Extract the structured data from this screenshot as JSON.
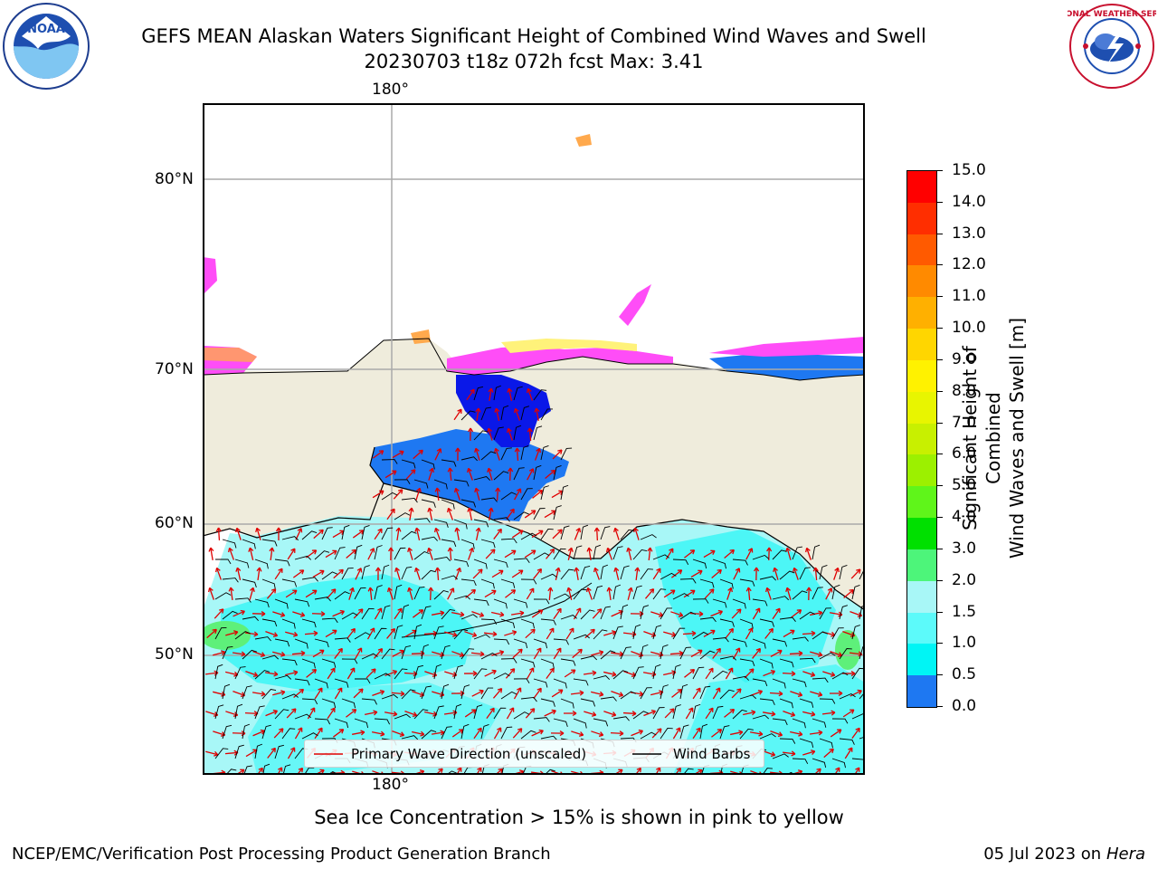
{
  "header": {
    "title_line1": "GEFS MEAN Alaskan Waters Significant Height of Combined Wind Waves and Swell",
    "title_line2": "20230703 t18z 072h fcst   Max: 3.41"
  },
  "logos": {
    "left_text": "NOAA",
    "right_text": "NATIONAL WEATHER SERVICE"
  },
  "map": {
    "lon_labels": [
      "180°",
      "180°"
    ],
    "lat_labels": [
      "80°N",
      "70°N",
      "60°N",
      "50°N"
    ],
    "colors": {
      "land": "#efecdc",
      "ocean_light": "#a8f7f7",
      "ocean_cyan": "#3cf6f6",
      "ocean_blue": "#1e78f2",
      "ocean_deep": "#0a18e8",
      "ice_pink": "#ff4df7",
      "ice_orange": "#ffa94d",
      "ice_yellow": "#fff27a",
      "green": "#5ef07a",
      "grid": "#aaaaaa"
    }
  },
  "legend": {
    "wave_label": "Primary Wave Direction (unscaled)",
    "barb_label": "Wind Barbs"
  },
  "colorbar": {
    "label_line1": "Significant Height of Combined",
    "label_line2": "Wind Waves and Swell [m]",
    "ticks": [
      "15.0",
      "14.0",
      "13.0",
      "12.0",
      "11.0",
      "10.0",
      "9.0",
      "8.0",
      "7.0",
      "6.0",
      "5.0",
      "4.0",
      "3.0",
      "2.0",
      "1.5",
      "1.0",
      "0.5",
      "0.0"
    ],
    "colors_top_to_bottom": [
      "#ff0000",
      "#ff2e00",
      "#ff5a00",
      "#ff8a00",
      "#ffb000",
      "#ffd600",
      "#fff200",
      "#e8f500",
      "#c8f000",
      "#9cf000",
      "#5ff51a",
      "#00e000",
      "#4df57a",
      "#a8f7f7",
      "#5cfafa",
      "#00f5f5",
      "#1e78f2",
      "#0000f5"
    ]
  },
  "notes": {
    "ice_note": "Sea Ice Concentration > 15% is shown in pink to yellow"
  },
  "footer": {
    "left": "NCEP/EMC/Verification Post Processing Product Generation Branch",
    "date": "05 Jul 2023 on ",
    "host": "Hera"
  }
}
